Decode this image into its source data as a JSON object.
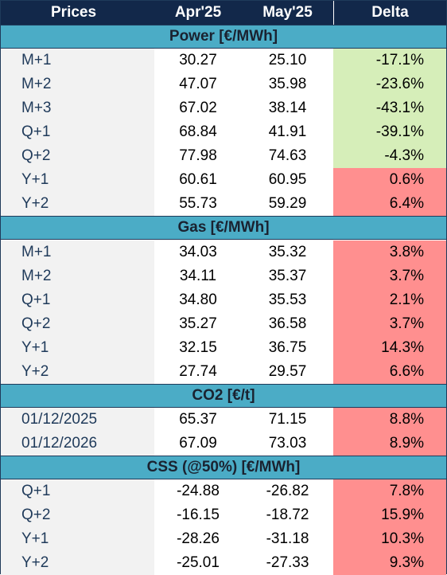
{
  "chart_data": {
    "type": "table",
    "columns": [
      "Prices",
      "Apr'25",
      "May'25",
      "Delta"
    ],
    "sections": [
      {
        "title": "Power [€/MWh]",
        "rows": [
          {
            "label": "M+1",
            "apr": "30.27",
            "may": "25.10",
            "delta": "-17.1%"
          },
          {
            "label": "M+2",
            "apr": "47.07",
            "may": "35.98",
            "delta": "-23.6%"
          },
          {
            "label": "M+3",
            "apr": "67.02",
            "may": "38.14",
            "delta": "-43.1%"
          },
          {
            "label": "Q+1",
            "apr": "68.84",
            "may": "41.91",
            "delta": "-39.1%"
          },
          {
            "label": "Q+2",
            "apr": "77.98",
            "may": "74.63",
            "delta": "-4.3%"
          },
          {
            "label": "Y+1",
            "apr": "60.61",
            "may": "60.95",
            "delta": "0.6%"
          },
          {
            "label": "Y+2",
            "apr": "55.73",
            "may": "59.29",
            "delta": "6.4%"
          }
        ]
      },
      {
        "title": "Gas [€/MWh]",
        "rows": [
          {
            "label": "M+1",
            "apr": "34.03",
            "may": "35.32",
            "delta": "3.8%"
          },
          {
            "label": "M+2",
            "apr": "34.11",
            "may": "35.37",
            "delta": "3.7%"
          },
          {
            "label": "Q+1",
            "apr": "34.80",
            "may": "35.53",
            "delta": "2.1%"
          },
          {
            "label": "Q+2",
            "apr": "35.27",
            "may": "36.58",
            "delta": "3.7%"
          },
          {
            "label": "Y+1",
            "apr": "32.15",
            "may": "36.75",
            "delta": "14.3%"
          },
          {
            "label": "Y+2",
            "apr": "27.74",
            "may": "29.57",
            "delta": "6.6%"
          }
        ]
      },
      {
        "title": "CO2 [€/t]",
        "rows": [
          {
            "label": "01/12/2025",
            "apr": "65.37",
            "may": "71.15",
            "delta": "8.8%"
          },
          {
            "label": "01/12/2026",
            "apr": "67.09",
            "may": "73.03",
            "delta": "8.9%"
          }
        ]
      },
      {
        "title": "CSS (@50%) [€/MWh]",
        "rows": [
          {
            "label": "Q+1",
            "apr": "-24.88",
            "may": "-26.82",
            "delta": "7.8%"
          },
          {
            "label": "Q+2",
            "apr": "-16.15",
            "may": "-18.72",
            "delta": "15.9%"
          },
          {
            "label": "Y+1",
            "apr": "-28.26",
            "may": "-31.18",
            "delta": "10.3%"
          },
          {
            "label": "Y+2",
            "apr": "-25.01",
            "may": "-27.33",
            "delta": "9.3%"
          }
        ]
      }
    ],
    "colors": {
      "header_bg": "#12284a",
      "section_bg": "#4bacc6",
      "label_bg": "#f2f2f2",
      "delta_negative": "#d6eeb9",
      "delta_positive": "#ff8f8f"
    }
  }
}
